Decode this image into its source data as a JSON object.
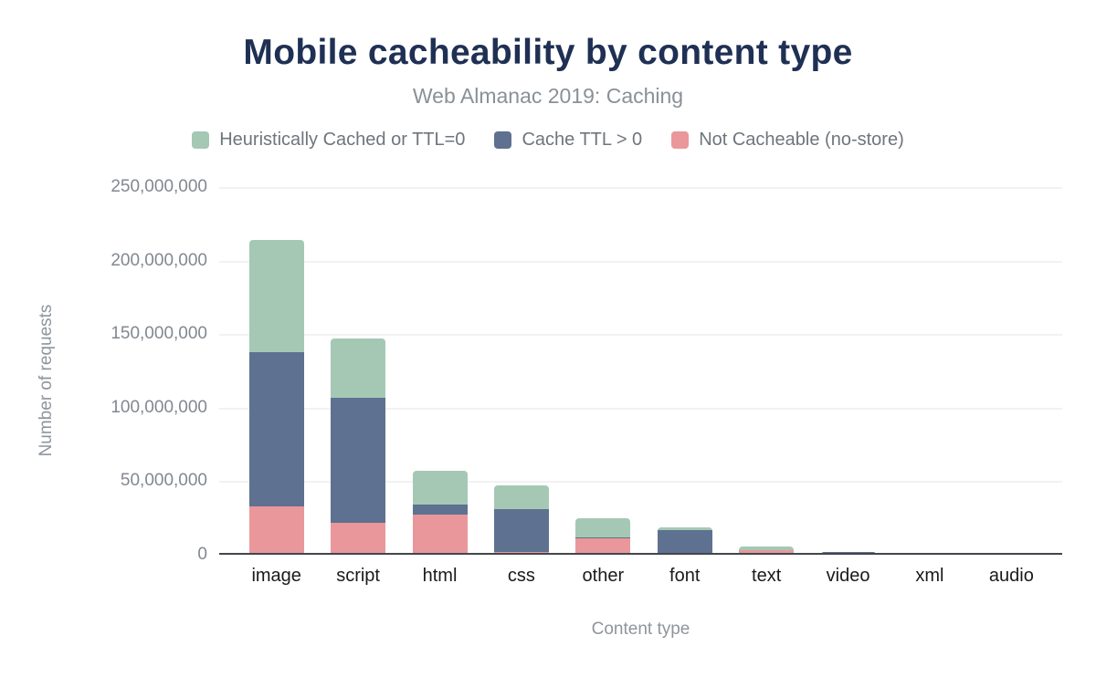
{
  "chart_data": {
    "type": "bar",
    "stacked": true,
    "title": "Mobile cacheability by content type",
    "subtitle": "Web Almanac 2019: Caching",
    "xlabel": "Content type",
    "ylabel": "Number of requests",
    "ylim": [
      0,
      250000000
    ],
    "grid": true,
    "legend_position": "top",
    "legend_order": [
      "Heuristically Cached or TTL=0",
      "Cache TTL > 0",
      "Not Cacheable (no-store)"
    ],
    "ytick_values": [
      250000000,
      200000000,
      150000000,
      100000000,
      50000000,
      0
    ],
    "ytick_labels": [
      "250,000,000",
      "200,000,000",
      "150,000,000",
      "100,000,000",
      "50,000,000",
      "0"
    ],
    "categories": [
      "image",
      "script",
      "html",
      "css",
      "other",
      "font",
      "text",
      "video",
      "xml",
      "audio"
    ],
    "series": [
      {
        "name": "Not Cacheable (no-store)",
        "color": "#e9979a",
        "values": [
          33000000,
          22000000,
          27000000,
          2000000,
          11000000,
          500000,
          3000000,
          200000,
          100000,
          100000
        ]
      },
      {
        "name": "Cache TTL > 0",
        "color": "#5e7190",
        "values": [
          105000000,
          85000000,
          7000000,
          29000000,
          500000,
          16000000,
          200000,
          1600000,
          150000,
          100000
        ]
      },
      {
        "name": "Heuristically Cached or TTL=0",
        "color": "#a5c8b5",
        "values": [
          76000000,
          40000000,
          23000000,
          16000000,
          13500000,
          2000000,
          2300000,
          200000,
          1300000,
          100000
        ]
      }
    ],
    "colors": {
      "title": "#1f3054",
      "subtitle": "#8a9097",
      "legend_text": "#6f757d",
      "ytick_text": "#82888f",
      "xtick_text": "#1a1a1a",
      "axis_title_text": "#8f959c",
      "gridline": "#f2f2f2",
      "axis_line": "#42464d",
      "background": "#ffffff"
    }
  }
}
